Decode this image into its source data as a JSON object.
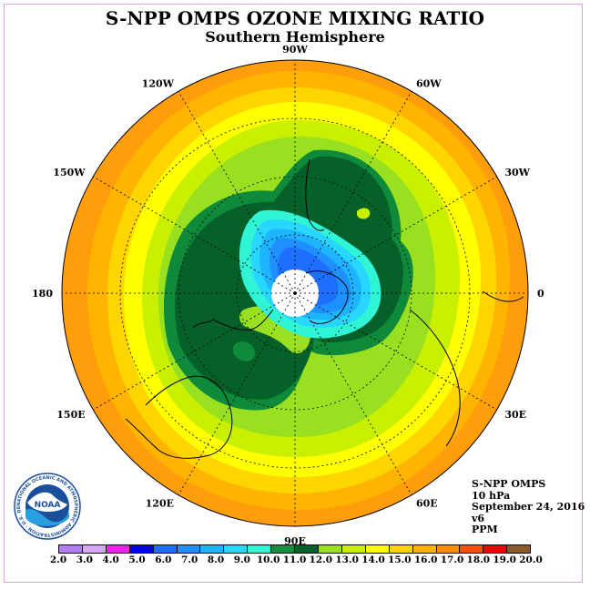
{
  "title": "S-NPP OMPS OZONE MIXING RATIO",
  "subtitle": "Southern Hemisphere",
  "longitude_labels": [
    {
      "text": "90W",
      "lon": -90
    },
    {
      "text": "60W",
      "lon": -60
    },
    {
      "text": "30W",
      "lon": -30
    },
    {
      "text": "0",
      "lon": 0
    },
    {
      "text": "30E",
      "lon": 30
    },
    {
      "text": "60E",
      "lon": 60
    },
    {
      "text": "90E",
      "lon": 90
    },
    {
      "text": "120E",
      "lon": 120
    },
    {
      "text": "150E",
      "lon": 150
    },
    {
      "text": "180",
      "lon": 180
    },
    {
      "text": "150W",
      "lon": -150
    },
    {
      "text": "120W",
      "lon": -120
    }
  ],
  "info": {
    "instrument": "S-NPP OMPS",
    "level": "10 hPa",
    "date": "September 24, 2016",
    "version": "v6",
    "units": "PPM"
  },
  "logo": {
    "icon": "noaa-logo-icon",
    "text": "NOAA",
    "ring_text": "NATIONAL OCEANIC AND ATMOSPHERIC ADMINISTRATION · U.S. DEPARTMENT OF COMMERCE"
  },
  "colorbar": {
    "ticks": [
      "2.0",
      "3.0",
      "4.0",
      "5.0",
      "6.0",
      "7.0",
      "8.0",
      "9.0",
      "10.0",
      "11.0",
      "12.0",
      "13.0",
      "14.0",
      "15.0",
      "16.0",
      "17.0",
      "18.0",
      "19.0",
      "20.0"
    ],
    "colors": [
      "#b57ef0",
      "#d9a8f2",
      "#f020f0",
      "#0000ee",
      "#1e6fff",
      "#1e90ff",
      "#1eb4ff",
      "#28d7ff",
      "#2ff5d5",
      "#109040",
      "#06602a",
      "#98e020",
      "#c8f000",
      "#ffff00",
      "#ffd200",
      "#ffb000",
      "#ff8c00",
      "#ff5000",
      "#ee0000",
      "#8b5a2b"
    ]
  },
  "map_colors": {
    "outer": "#ff9d0a",
    "c16": "#ffb400",
    "c15": "#ffd500",
    "c14": "#ffff00",
    "c13": "#c8f000",
    "c12": "#98e020",
    "c11": "#0e8a3a",
    "c10": "#06602a",
    "c9": "#2ff5d5",
    "c8": "#28d7ff",
    "c7": "#1eb4ff",
    "c6": "#1e90ff",
    "c5": "#1e6fff",
    "pole": "#ffffff",
    "coast": "#000000"
  }
}
